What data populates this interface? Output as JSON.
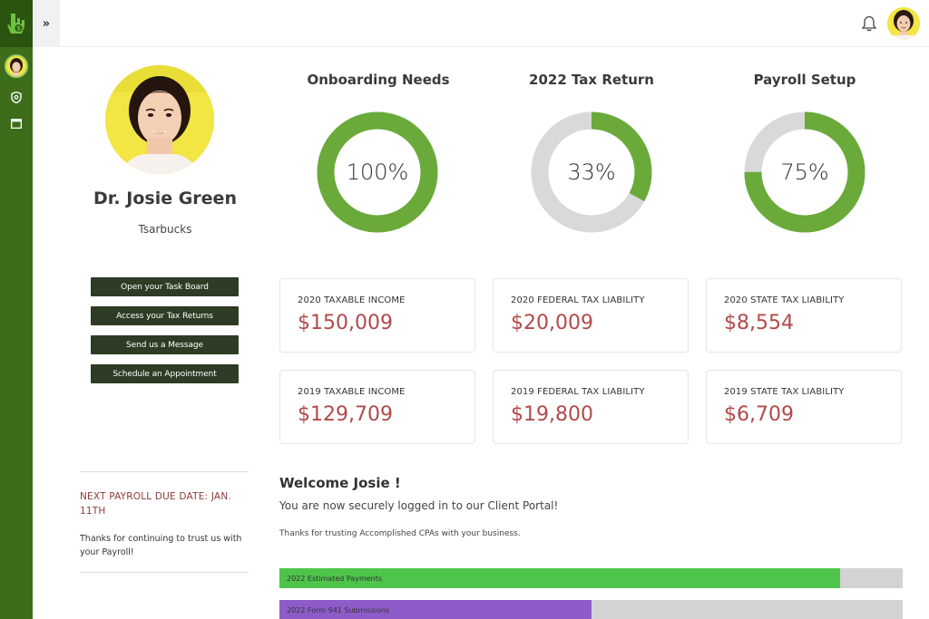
{
  "topbar": {
    "expand_label": "»"
  },
  "profile": {
    "name": "Dr. Josie Green",
    "company": "Tsarbucks"
  },
  "actions": [
    {
      "label": "Open your Task Board"
    },
    {
      "label": "Access your Tax Returns"
    },
    {
      "label": "Send us a Message"
    },
    {
      "label": "Schedule an Appointment"
    }
  ],
  "payroll": {
    "due": "NEXT PAYROLL DUE DATE: JAN. 11TH",
    "note": "Thanks for continuing to trust us with your Payroll!"
  },
  "donuts": [
    {
      "title": "Onboarding Needs",
      "percent": 100,
      "label": "100%"
    },
    {
      "title": "2022 Tax Return",
      "percent": 33,
      "label": "33%"
    },
    {
      "title": "Payroll Setup",
      "percent": 75,
      "label": "75%"
    }
  ],
  "cards": [
    {
      "label": "2020 TAXABLE INCOME",
      "value": "$150,009"
    },
    {
      "label": "2020 FEDERAL TAX LIABILITY",
      "value": "$20,009"
    },
    {
      "label": "2020 STATE TAX LIABILITY",
      "value": "$8,554"
    },
    {
      "label": "2019 TAXABLE INCOME",
      "value": "$129,709"
    },
    {
      "label": "2019 FEDERAL TAX LIABILITY",
      "value": "$19,800"
    },
    {
      "label": "2019 STATE TAX LIABILITY",
      "value": "$6,709"
    }
  ],
  "welcome": {
    "title": "Welcome Josie !",
    "subtitle": "You are now securely logged in to our Client Portal!",
    "thanks": "Thanks for trusting Accomplished CPAs with your business."
  },
  "progress": [
    {
      "label": "2022 Estimated Payments",
      "fraction": 0.9,
      "color": "#4ec44a"
    },
    {
      "label": "2022 Form 941 Submissions",
      "fraction": 0.5,
      "color": "#8e5cc9"
    }
  ],
  "colors": {
    "rail": "#3d6d1a",
    "accent_green": "#6aaa3a",
    "track_grey": "#d9d9d9",
    "value_red": "#b24a4a",
    "button_dark": "#2e3b25"
  },
  "icons": {
    "logo": "hand-dollar-logo",
    "rail_avatar": "avatar",
    "rail_1": "shield-icon",
    "rail_2": "calendar-icon",
    "bell": "bell-icon"
  }
}
